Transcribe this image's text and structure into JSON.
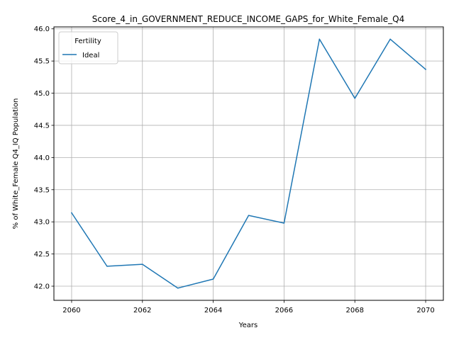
{
  "chart_data": {
    "type": "line",
    "title": "Score_4_in_GOVERNMENT_REDUCE_INCOME_GAPS_for_White_Female_Q4",
    "xlabel": "Years",
    "ylabel": "% of White_Female Q4_IQ Population",
    "x": [
      2060,
      2061,
      2062,
      2063,
      2064,
      2065,
      2066,
      2067,
      2068,
      2069,
      2070
    ],
    "series": [
      {
        "name": "Ideal",
        "color": "#1f77b4",
        "values": [
          43.14,
          42.31,
          42.34,
          41.97,
          42.11,
          43.1,
          42.98,
          45.84,
          44.92,
          45.84,
          45.37
        ]
      }
    ],
    "xlim": [
      2059.5,
      2070.5
    ],
    "ylim": [
      41.78,
      46.03
    ],
    "xticks": [
      "2060",
      "2062",
      "2064",
      "2066",
      "2068",
      "2070"
    ],
    "yticks": [
      "42.0",
      "42.5",
      "43.0",
      "43.5",
      "44.0",
      "44.5",
      "45.0",
      "45.5",
      "46.0"
    ],
    "grid": true,
    "legend": {
      "title": "Fertility",
      "placement": "top-left"
    }
  }
}
